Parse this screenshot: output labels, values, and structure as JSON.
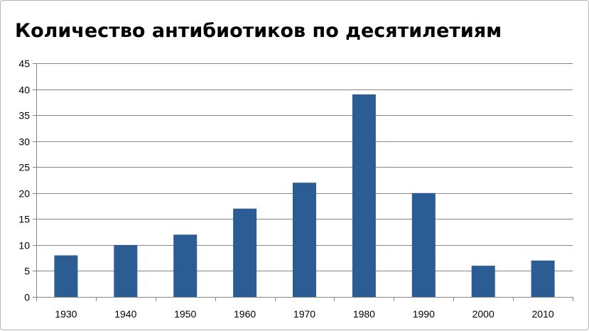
{
  "chart_data": {
    "type": "bar",
    "title": "Количество антибиотиков по десятилетиям",
    "xlabel": "",
    "ylabel": "",
    "categories": [
      "1930",
      "1940",
      "1950",
      "1960",
      "1970",
      "1980",
      "1990",
      "2000",
      "2010"
    ],
    "values": [
      8,
      10,
      12,
      17,
      22,
      39,
      20,
      6,
      7
    ],
    "ylim": [
      0,
      45
    ],
    "yticks": [
      "0",
      "5",
      "10",
      "15",
      "20",
      "25",
      "30",
      "35",
      "40",
      "45"
    ],
    "grid": true,
    "legend": "none",
    "bar_color": "#2b5c94",
    "grid_color": "#878787"
  }
}
